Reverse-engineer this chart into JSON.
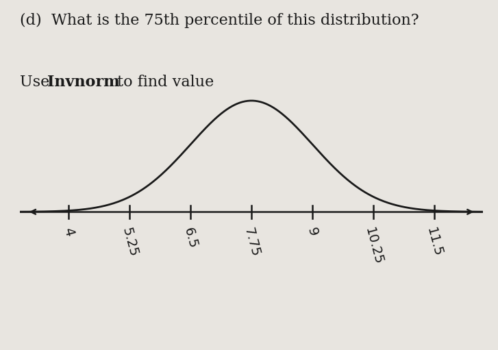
{
  "title_line1": "(d)  What is the 75th percentile of this distribution?",
  "title_line2_pre": "Use ",
  "title_line2_bold": "Invnorm",
  "title_line2_post": " to find value",
  "tick_labels": [
    "4",
    "5.25",
    "6.5",
    "7.75",
    "9",
    "10.25",
    "11.5"
  ],
  "tick_values": [
    4.0,
    5.25,
    6.5,
    7.75,
    9.0,
    10.25,
    11.5
  ],
  "mean": 7.75,
  "std": 1.25,
  "bg_color": "#e8e5e0",
  "curve_color": "#1a1a1a",
  "axis_color": "#1a1a1a",
  "text_color": "#1a1a1a",
  "label_fontsize": 14,
  "title_fontsize": 16,
  "label_rotation": -75
}
